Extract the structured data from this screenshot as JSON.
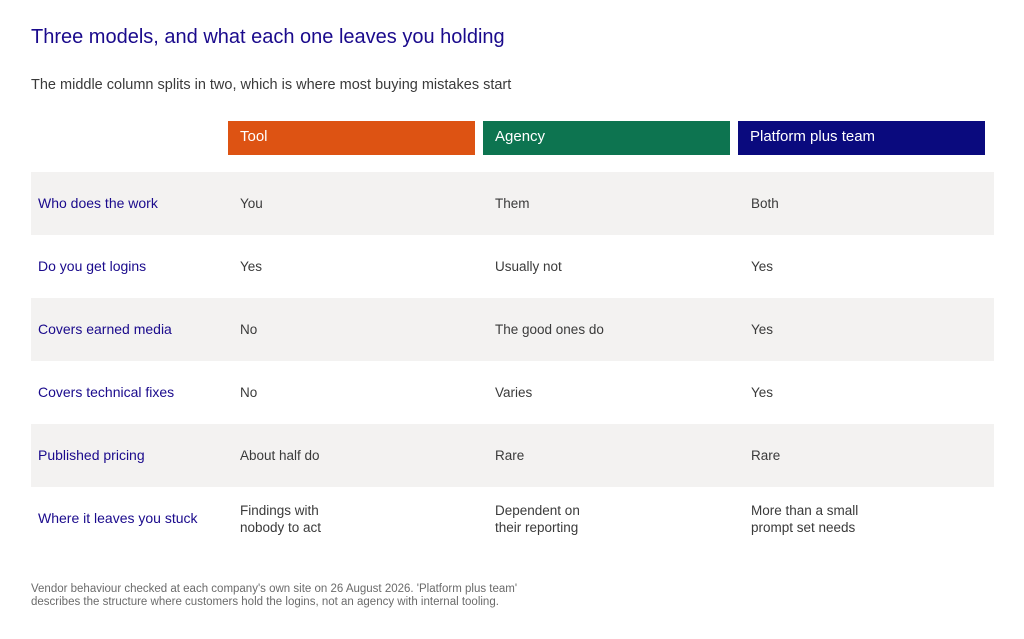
{
  "title": "Three models, and what each one leaves you holding",
  "subtitle": "The middle column splits in two, which is where most buying mistakes start",
  "columns": [
    {
      "label": "Tool",
      "color": "#dd5313"
    },
    {
      "label": "Agency",
      "color": "#0d7450"
    },
    {
      "label": "Platform plus team",
      "color": "#0a0a7e"
    }
  ],
  "rows": [
    {
      "label": "Who does the work",
      "cells": [
        "You",
        "Them",
        "Both"
      ]
    },
    {
      "label": "Do you get logins",
      "cells": [
        "Yes",
        "Usually not",
        "Yes"
      ]
    },
    {
      "label": "Covers earned media",
      "cells": [
        "No",
        "The good ones do",
        "Yes"
      ]
    },
    {
      "label": "Covers technical fixes",
      "cells": [
        "No",
        "Varies",
        "Yes"
      ]
    },
    {
      "label": "Published pricing",
      "cells": [
        "About half do",
        "Rare",
        "Rare"
      ]
    },
    {
      "label": "Where it leaves you stuck",
      "cells": [
        "Findings with\nnobody to act",
        "Dependent on\ntheir reporting",
        "More than a small\nprompt set needs"
      ]
    }
  ],
  "footnote": {
    "line1": "Vendor behaviour checked at each company's own site on 26 August 2026. 'Platform plus team'",
    "line2": "describes the structure where customers hold the logins, not an agency with internal tooling."
  }
}
